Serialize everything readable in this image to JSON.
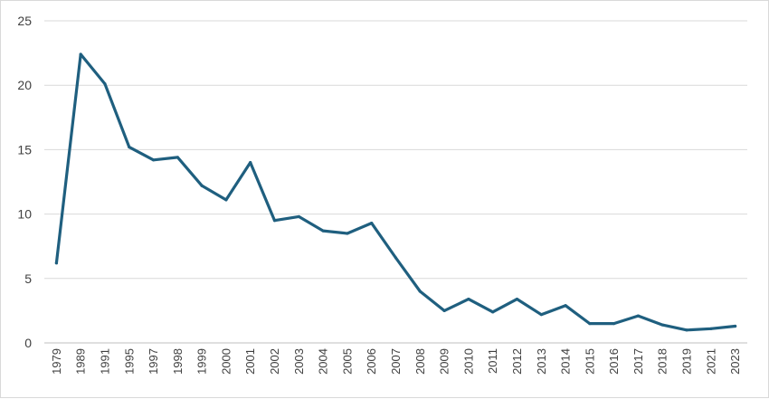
{
  "chart_data": {
    "type": "line",
    "title": "",
    "xlabel": "",
    "ylabel": "",
    "ylim": [
      0,
      25
    ],
    "y_ticks": [
      0,
      5,
      10,
      15,
      20,
      25
    ],
    "y_tick_labels": [
      "0",
      "5",
      "10",
      "15",
      "20",
      "25"
    ],
    "grid": true,
    "legend": "none",
    "categories": [
      "1979",
      "1989",
      "1991",
      "1995",
      "1997",
      "1998",
      "1999",
      "2000",
      "2001",
      "2002",
      "2003",
      "2004",
      "2005",
      "2006",
      "2007",
      "2008",
      "2009",
      "2010",
      "2011",
      "2012",
      "2013",
      "2014",
      "2015",
      "2016",
      "2017",
      "2018",
      "2019",
      "2021",
      "2023"
    ],
    "series": [
      {
        "color": "#1f5f7f",
        "values": [
          6.2,
          22.4,
          20.1,
          15.2,
          14.2,
          14.4,
          12.2,
          11.1,
          14.0,
          9.5,
          9.8,
          8.7,
          8.5,
          9.3,
          6.6,
          4.0,
          2.5,
          3.4,
          2.4,
          3.4,
          2.2,
          2.9,
          1.5,
          1.5,
          2.1,
          1.4,
          1.0,
          1.1,
          1.3
        ]
      }
    ]
  }
}
